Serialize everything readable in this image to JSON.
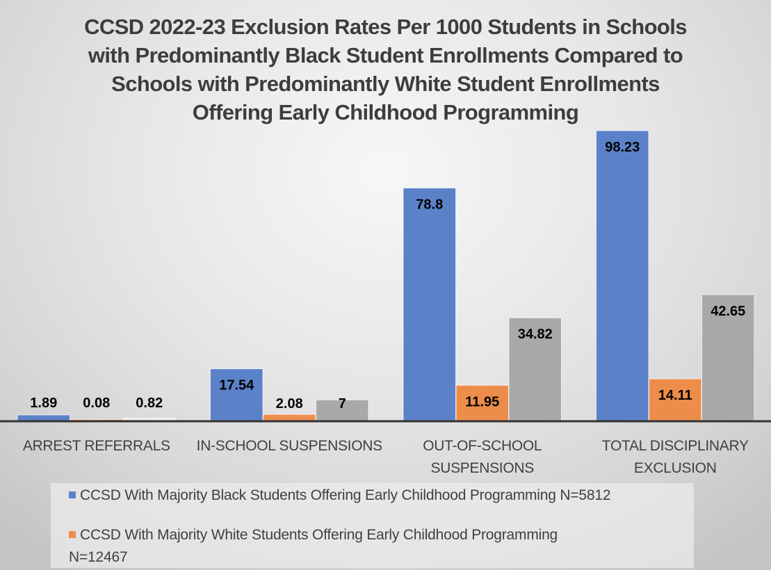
{
  "chart_data": {
    "type": "bar",
    "title": "CCSD 2022-23 Exclusion Rates Per 1000 Students in Schools with Predominantly Black Student Enrollments Compared to Schools with Predominantly White Student Enrollments Offering Early Childhood Programming",
    "title_lines": [
      "CCSD 2022-23 Exclusion Rates Per 1000 Students in Schools",
      "with Predominantly Black Student Enrollments Compared to",
      "Schools with Predominantly White Student Enrollments",
      "Offering Early Childhood Programming"
    ],
    "categories": [
      "ARREST REFERRALS",
      "IN-SCHOOL SUSPENSIONS",
      "OUT-OF-SCHOOL SUSPENSIONS",
      "TOTAL DISCIPLINARY EXCLUSION"
    ],
    "category_label_lines": [
      [
        "ARREST REFERRALS"
      ],
      [
        "IN-SCHOOL SUSPENSIONS"
      ],
      [
        "OUT-OF-SCHOOL",
        "SUSPENSIONS"
      ],
      [
        "TOTAL DISCIPLINARY",
        "EXCLUSION"
      ]
    ],
    "series": [
      {
        "name": "CCSD With Majority Black Students Offering Early Childhood Programming N=5812",
        "color": "#5b82c9",
        "values": [
          1.89,
          17.54,
          78.8,
          98.23
        ],
        "labels": [
          "1.89",
          "17.54",
          "78.8",
          "98.23"
        ]
      },
      {
        "name": "CCSD With Majority White Students Offering Early Childhood Programming N=12467",
        "color": "#ed8d4b",
        "values": [
          0.08,
          2.08,
          11.95,
          14.11
        ],
        "labels": [
          "0.08",
          "2.08",
          "11.95",
          "14.11"
        ]
      },
      {
        "name": "",
        "color": "#a9a9a9",
        "values": [
          0.82,
          7,
          34.82,
          42.65
        ],
        "labels": [
          "0.82",
          "7",
          "34.82",
          "42.65"
        ]
      }
    ],
    "legend": {
      "position": "bottom",
      "items": [
        {
          "label": "CCSD With Majority Black Students Offering Early Childhood Programming N=5812",
          "color": "#5b82c9"
        },
        {
          "label_line1": "CCSD With Majority White Students Offering Early Childhood Programming",
          "label_line2": "N=12467",
          "color": "#ed8d4b"
        }
      ]
    },
    "xlabel": "",
    "ylabel": "",
    "ylim": [
      0,
      100
    ],
    "grid": false,
    "data_labels": true
  }
}
